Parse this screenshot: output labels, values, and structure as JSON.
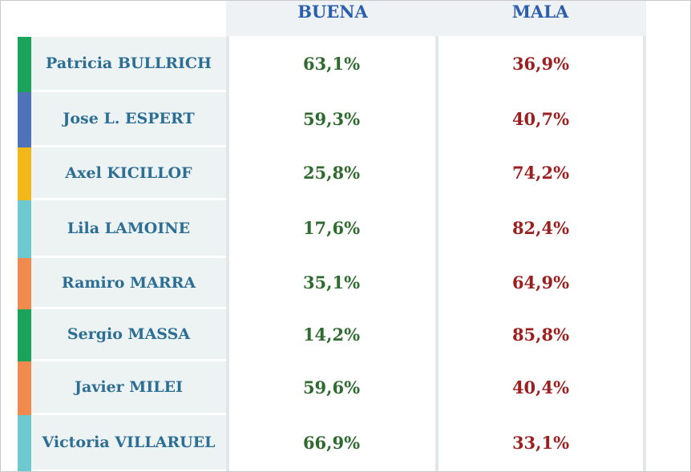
{
  "columns": {
    "buena": "BUENA",
    "mala": "MALA"
  },
  "rows": [
    {
      "name": "Patricia BULLRICH",
      "buena": "63,1%",
      "mala": "36,9%",
      "color": "#1aa35a"
    },
    {
      "name": "Jose L. ESPERT",
      "buena": "59,3%",
      "mala": "40,7%",
      "color": "#4f73b8"
    },
    {
      "name": "Axel KICILLOF",
      "buena": "25,8%",
      "mala": "74,2%",
      "color": "#f2b81a"
    },
    {
      "name": "Lila LAMOINE",
      "buena": "17,6%",
      "mala": "82,4%",
      "color": "#6ec8cf"
    },
    {
      "name": "Ramiro MARRA",
      "buena": "35,1%",
      "mala": "64,9%",
      "color": "#f08a4e"
    },
    {
      "name": "Sergio MASSA",
      "buena": "14,2%",
      "mala": "85,8%",
      "color": "#1aa35a"
    },
    {
      "name": "Javier MILEI",
      "buena": "59,6%",
      "mala": "40,4%",
      "color": "#f08a4e"
    },
    {
      "name": "Victoria VILLARUEL",
      "buena": "66,9%",
      "mala": "33,1%",
      "color": "#6ec8cf"
    }
  ],
  "colors": {
    "header": "#2b5fae",
    "name": "#2d6e94",
    "buena": "#2f6b2e",
    "mala": "#9b1f1f"
  }
}
